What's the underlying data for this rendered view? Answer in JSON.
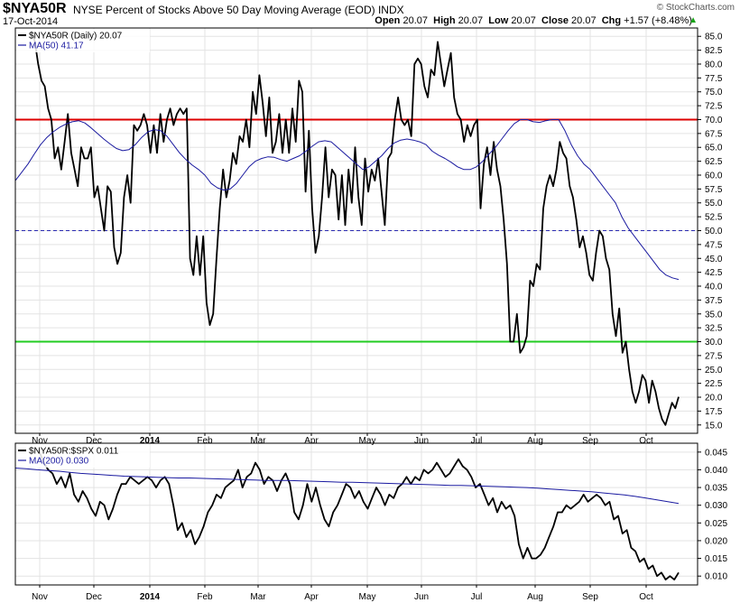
{
  "header": {
    "symbol": "$NYA50R",
    "subtitle": "NYSE Percent of Stocks Above 50 Day Moving Average (EOD)  INDX",
    "date": "17-Oct-2014",
    "open_label": "Open",
    "open": "20.07",
    "high_label": "High",
    "high": "20.07",
    "low_label": "Low",
    "low": "20.07",
    "close_label": "Close",
    "close": "20.07",
    "chg_label": "Chg",
    "chg": "+1.57 (+8.48%)",
    "chg_arrow": "▲",
    "copyright": "© StockCharts.com"
  },
  "colors": {
    "price": "#000000",
    "ma": "#1a1aa0",
    "overbought": "#dd0000",
    "oversold": "#22cc22",
    "midline": "#2a2ab0",
    "up": "#18a418"
  },
  "x_labels": [
    "Nov",
    "Dec",
    "2014",
    "Feb",
    "Mar",
    "Apr",
    "May",
    "Jun",
    "Jul",
    "Aug",
    "Sep",
    "Oct"
  ],
  "chart_data": [
    {
      "type": "line",
      "legend": [
        "$NYA50R (Daily) 20.07",
        "MA(50) 41.17"
      ],
      "y_ticks": [
        "85.0",
        "82.5",
        "80.0",
        "77.5",
        "75.0",
        "72.5",
        "70.0",
        "67.5",
        "65.0",
        "62.5",
        "60.0",
        "57.5",
        "55.0",
        "52.5",
        "50.0",
        "47.5",
        "45.0",
        "42.5",
        "40.0",
        "37.5",
        "35.0",
        "32.5",
        "30.0",
        "27.5",
        "25.0",
        "22.5",
        "20.0",
        "17.5",
        "15.0"
      ],
      "ylim": [
        13.5,
        86.5
      ],
      "reference_lines": [
        {
          "value": 70,
          "style": "solid",
          "color": "#dd0000"
        },
        {
          "value": 50,
          "style": "dashed",
          "color": "#2a2ab0"
        },
        {
          "value": 30,
          "style": "solid",
          "color": "#22cc22"
        }
      ],
      "series": [
        {
          "name": "$NYA50R (Daily) 20.07",
          "values": [
            86,
            84,
            80,
            77,
            76,
            72,
            70,
            63,
            65,
            61,
            66,
            71,
            64,
            61,
            58,
            65,
            63,
            63,
            65,
            56,
            58,
            54,
            50,
            58,
            57,
            47,
            44,
            46,
            56,
            60,
            55,
            69,
            68,
            69,
            71,
            69,
            64,
            69,
            64,
            71,
            66,
            70,
            72,
            69,
            71,
            72,
            71,
            72,
            45,
            42,
            49,
            42,
            49,
            37,
            33,
            35,
            45,
            54,
            61,
            56,
            59,
            64,
            62,
            67,
            66,
            70,
            65,
            75,
            71,
            78,
            73,
            67,
            74,
            64,
            66,
            71,
            64,
            70,
            64,
            72,
            66,
            77,
            75,
            57,
            68,
            54,
            46,
            49,
            56,
            65,
            56,
            61,
            60,
            52,
            60,
            51,
            61,
            55,
            65,
            56,
            51,
            63,
            57,
            61,
            59,
            63,
            57,
            51,
            63,
            64,
            70,
            74,
            70,
            69,
            70,
            67,
            80,
            81,
            80,
            76,
            74,
            79,
            78,
            84,
            80,
            76,
            79,
            82,
            74,
            71,
            70,
            66,
            69,
            67,
            69,
            70,
            54,
            62,
            65,
            60,
            66,
            61,
            58,
            52,
            44,
            30,
            30,
            35,
            28,
            29,
            31,
            41,
            40,
            44,
            43,
            54,
            58,
            60,
            58,
            61,
            66,
            64,
            63,
            58,
            56,
            52,
            47,
            49,
            46,
            42,
            41,
            46,
            50,
            49,
            45,
            43,
            35,
            31,
            36,
            28,
            30,
            25,
            21,
            19,
            21,
            24,
            23,
            19,
            23,
            21,
            18,
            16,
            15,
            17,
            19,
            18,
            20.07
          ]
        },
        {
          "name": "MA(50) 41.17",
          "values": [
            59.0,
            60.5,
            62.0,
            63.8,
            65.5,
            66.8,
            67.8,
            68.6,
            69.2,
            69.6,
            69.8,
            69.4,
            68.5,
            67.5,
            66.5,
            65.6,
            64.8,
            64.4,
            64.6,
            65.5,
            66.8,
            67.8,
            68.2,
            68.0,
            67.0,
            65.5,
            64.0,
            62.8,
            61.8,
            61.0,
            60.0,
            58.5,
            57.7,
            57.3,
            57.5,
            58.5,
            60.0,
            61.5,
            62.5,
            63.0,
            63.3,
            63.2,
            62.8,
            62.5,
            63.0,
            63.5,
            64.3,
            65.2,
            66.0,
            66.2,
            66.0,
            65.0,
            64.0,
            63.0,
            62.0,
            61.0,
            61.5,
            62.5,
            63.5,
            64.8,
            65.8,
            66.3,
            66.5,
            66.3,
            66.0,
            65.5,
            64.3,
            63.6,
            63.0,
            62.3,
            61.5,
            61.0,
            61.0,
            61.5,
            62.5,
            63.8,
            65.0,
            66.5,
            68.0,
            69.3,
            70.0,
            70.0,
            69.6,
            69.5,
            69.8,
            70.0,
            70.0,
            68.0,
            65.5,
            63.5,
            62.0,
            61.0,
            59.5,
            58.0,
            56.5,
            55.0,
            52.5,
            50.5,
            49.0,
            47.5,
            46.0,
            44.5,
            43.0,
            42.0,
            41.5,
            41.2
          ]
        }
      ]
    },
    {
      "type": "line",
      "legend": [
        "$NYA50R:$SPX 0.011",
        "MA(200) 0.030"
      ],
      "y_ticks": [
        "0.045",
        "0.040",
        "0.035",
        "0.030",
        "0.025",
        "0.020",
        "0.015",
        "0.010"
      ],
      "ylim": [
        0.0075,
        0.0475
      ],
      "series": [
        {
          "name": "$NYA50R:$SPX 0.011",
          "values": [
            0.046,
            0.045,
            0.042,
            0.04,
            0.039,
            0.036,
            0.038,
            0.035,
            0.039,
            0.033,
            0.031,
            0.034,
            0.032,
            0.029,
            0.027,
            0.031,
            0.03,
            0.026,
            0.029,
            0.033,
            0.036,
            0.036,
            0.038,
            0.037,
            0.036,
            0.037,
            0.038,
            0.037,
            0.035,
            0.037,
            0.038,
            0.036,
            0.03,
            0.023,
            0.025,
            0.021,
            0.023,
            0.019,
            0.021,
            0.024,
            0.028,
            0.03,
            0.033,
            0.032,
            0.035,
            0.036,
            0.037,
            0.04,
            0.035,
            0.038,
            0.039,
            0.042,
            0.04,
            0.036,
            0.038,
            0.037,
            0.034,
            0.037,
            0.039,
            0.036,
            0.028,
            0.026,
            0.03,
            0.036,
            0.031,
            0.035,
            0.03,
            0.026,
            0.024,
            0.028,
            0.03,
            0.033,
            0.036,
            0.035,
            0.032,
            0.034,
            0.031,
            0.029,
            0.032,
            0.035,
            0.033,
            0.03,
            0.033,
            0.032,
            0.035,
            0.036,
            0.038,
            0.036,
            0.038,
            0.037,
            0.04,
            0.039,
            0.04,
            0.042,
            0.04,
            0.038,
            0.039,
            0.041,
            0.043,
            0.041,
            0.04,
            0.038,
            0.035,
            0.036,
            0.033,
            0.03,
            0.032,
            0.028,
            0.031,
            0.029,
            0.03,
            0.027,
            0.019,
            0.015,
            0.018,
            0.015,
            0.015,
            0.016,
            0.018,
            0.021,
            0.024,
            0.028,
            0.028,
            0.03,
            0.029,
            0.03,
            0.031,
            0.033,
            0.031,
            0.032,
            0.033,
            0.032,
            0.03,
            0.031,
            0.026,
            0.027,
            0.022,
            0.023,
            0.018,
            0.017,
            0.014,
            0.015,
            0.012,
            0.013,
            0.01,
            0.011,
            0.009,
            0.01,
            0.009,
            0.011
          ]
        },
        {
          "name": "MA(200) 0.030",
          "values": [
            0.0405,
            0.0403,
            0.04,
            0.0398,
            0.0396,
            0.0393,
            0.039,
            0.0388,
            0.0386,
            0.0384,
            0.0382,
            0.0381,
            0.038,
            0.0379,
            0.0378,
            0.0377,
            0.0377,
            0.0376,
            0.0375,
            0.0374,
            0.0373,
            0.0372,
            0.0371,
            0.037,
            0.037,
            0.037,
            0.0369,
            0.0368,
            0.0367,
            0.0366,
            0.0365,
            0.0365,
            0.0364,
            0.0363,
            0.0362,
            0.0361,
            0.036,
            0.0359,
            0.0358,
            0.0357,
            0.0356,
            0.0356,
            0.0355,
            0.0354,
            0.0353,
            0.0352,
            0.0351,
            0.035,
            0.0348,
            0.0346,
            0.0344,
            0.0342,
            0.034,
            0.0338,
            0.0335,
            0.0332,
            0.0329,
            0.0325,
            0.032,
            0.0315,
            0.031,
            0.0305
          ]
        }
      ]
    }
  ]
}
